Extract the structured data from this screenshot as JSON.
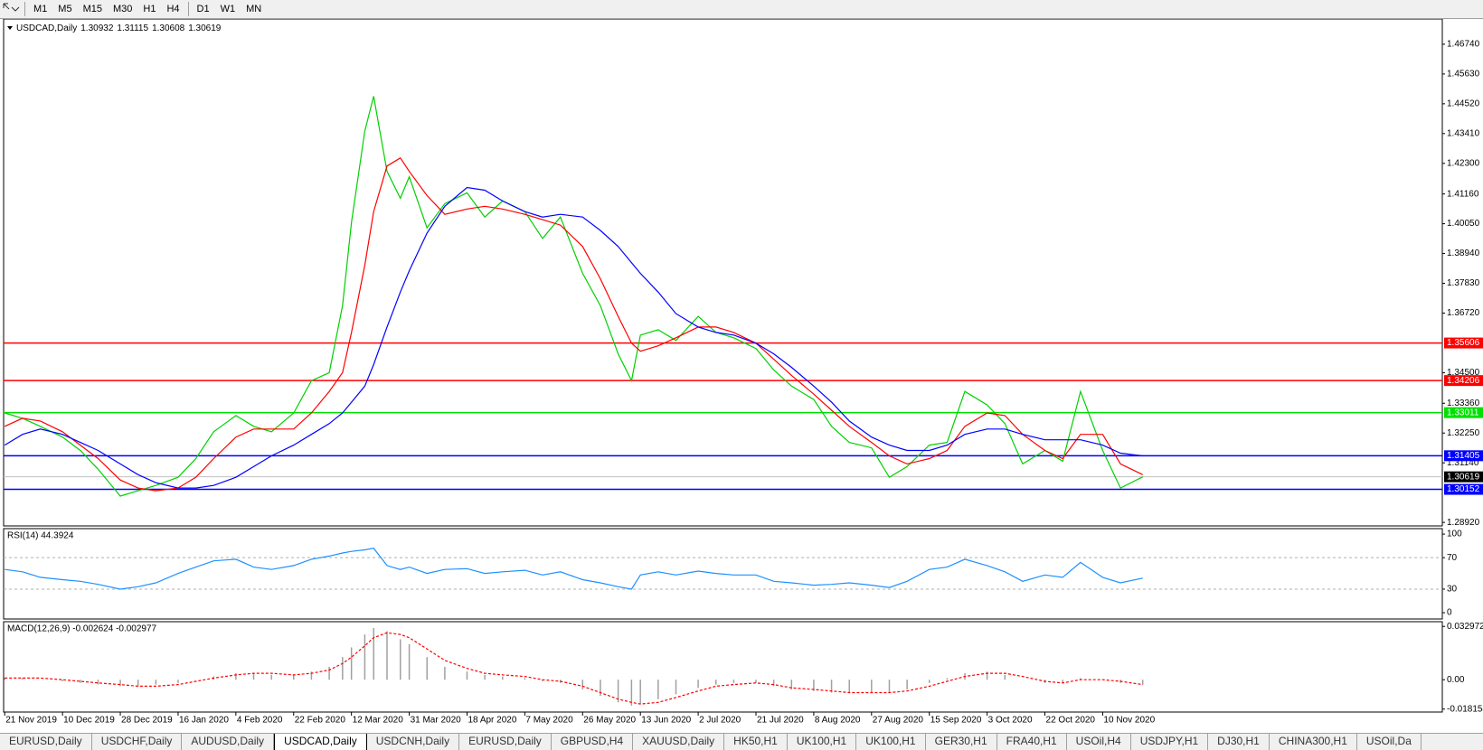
{
  "toolbar": {
    "timeframes": [
      "M1",
      "M5",
      "M15",
      "M30",
      "H1",
      "H4",
      "D1",
      "W1",
      "MN"
    ]
  },
  "chart_data": [
    {
      "type": "line",
      "title": "USDCAD,Daily",
      "ohlc": [
        1.30932,
        1.31115,
        1.30608,
        1.30619
      ],
      "x": [
        0,
        4,
        8,
        13,
        17,
        21,
        26,
        30,
        34,
        39,
        43,
        47,
        52,
        56,
        60,
        65,
        69,
        73,
        76,
        78,
        81,
        83,
        86,
        89,
        91,
        95,
        99,
        104,
        108,
        112,
        117,
        121,
        125,
        130,
        134,
        138,
        141,
        143,
        147,
        151,
        156,
        160,
        164,
        169,
        173,
        177,
        182,
        186,
        190,
        195,
        199,
        203,
        208,
        212,
        216,
        221,
        225,
        229,
        234,
        238,
        242,
        247,
        251,
        256
      ],
      "xlim": [
        -0.25,
        323.4
      ],
      "xticks": [
        {
          "value": 0,
          "label": "21 Nov 2019"
        },
        {
          "value": 13,
          "label": "10 Dec 2019"
        },
        {
          "value": 26,
          "label": "28 Dec 2019"
        },
        {
          "value": 39,
          "label": "16 Jan 2020"
        },
        {
          "value": 52,
          "label": "4 Feb 2020"
        },
        {
          "value": 65,
          "label": "22 Feb 2020"
        },
        {
          "value": 78,
          "label": "12 Mar 2020"
        },
        {
          "value": 91,
          "label": "31 Mar 2020"
        },
        {
          "value": 104,
          "label": "18 Apr 2020"
        },
        {
          "value": 117,
          "label": "7 May 2020"
        },
        {
          "value": 130,
          "label": "26 May 2020"
        },
        {
          "value": 143,
          "label": "13 Jun 2020"
        },
        {
          "value": 156,
          "label": "2 Jul 2020"
        },
        {
          "value": 169,
          "label": "21 Jul 2020"
        },
        {
          "value": 182,
          "label": "8 Aug 2020"
        },
        {
          "value": 195,
          "label": "27 Aug 2020"
        },
        {
          "value": 208,
          "label": "15 Sep 2020"
        },
        {
          "value": 221,
          "label": "3 Oct 2020"
        },
        {
          "value": 234,
          "label": "22 Oct 2020"
        },
        {
          "value": 247,
          "label": "10 Nov 2020"
        }
      ],
      "ylim": [
        1.2879,
        1.4768
      ],
      "yticks": [
        {
          "value": 1.4674,
          "label": "1.46740"
        },
        {
          "value": 1.4563,
          "label": "1.45630"
        },
        {
          "value": 1.4452,
          "label": "1.44520"
        },
        {
          "value": 1.4341,
          "label": "1.43410"
        },
        {
          "value": 1.423,
          "label": "1.42300"
        },
        {
          "value": 1.4116,
          "label": "1.41160"
        },
        {
          "value": 1.4005,
          "label": "1.40050"
        },
        {
          "value": 1.3894,
          "label": "1.38940"
        },
        {
          "value": 1.3783,
          "label": "1.37830"
        },
        {
          "value": 1.3672,
          "label": "1.36720"
        },
        {
          "value": 1.345,
          "label": "1.34500"
        },
        {
          "value": 1.3336,
          "label": "1.33360"
        },
        {
          "value": 1.3225,
          "label": "1.32250"
        },
        {
          "value": 1.3114,
          "label": "1.31140"
        },
        {
          "value": 1.2892,
          "label": "1.28920"
        }
      ],
      "series": [
        {
          "color": "#00d000",
          "values": [
            1.33,
            1.328,
            1.325,
            1.321,
            1.316,
            1.309,
            1.299,
            1.301,
            1.303,
            1.306,
            1.313,
            1.323,
            1.329,
            1.325,
            1.323,
            1.33,
            1.342,
            1.345,
            1.37,
            1.401,
            1.435,
            1.448,
            1.42,
            1.41,
            1.418,
            1.399,
            1.408,
            1.412,
            1.403,
            1.409,
            1.405,
            1.395,
            1.403,
            1.382,
            1.37,
            1.352,
            1.342,
            1.359,
            1.361,
            1.357,
            1.366,
            1.36,
            1.358,
            1.354,
            1.346,
            1.34,
            1.335,
            1.325,
            1.319,
            1.317,
            1.306,
            1.31,
            1.318,
            1.319,
            1.338,
            1.333,
            1.326,
            1.311,
            1.316,
            1.312,
            1.338,
            1.316,
            1.302,
            1.3062
          ]
        },
        {
          "color": "#ff0000",
          "values": [
            1.325,
            1.328,
            1.327,
            1.323,
            1.318,
            1.313,
            1.305,
            1.302,
            1.301,
            1.302,
            1.306,
            1.313,
            1.321,
            1.324,
            1.324,
            1.324,
            1.33,
            1.338,
            1.345,
            1.36,
            1.385,
            1.405,
            1.422,
            1.425,
            1.42,
            1.411,
            1.404,
            1.406,
            1.407,
            1.406,
            1.404,
            1.402,
            1.4,
            1.392,
            1.38,
            1.366,
            1.356,
            1.353,
            1.355,
            1.358,
            1.362,
            1.362,
            1.36,
            1.356,
            1.35,
            1.344,
            1.337,
            1.331,
            1.325,
            1.319,
            1.314,
            1.311,
            1.313,
            1.316,
            1.325,
            1.33,
            1.329,
            1.322,
            1.316,
            1.313,
            1.322,
            1.322,
            1.311,
            1.307
          ]
        },
        {
          "color": "#0000ff",
          "values": [
            1.318,
            1.322,
            1.324,
            1.322,
            1.319,
            1.316,
            1.311,
            1.307,
            1.304,
            1.302,
            1.302,
            1.303,
            1.306,
            1.31,
            1.314,
            1.318,
            1.322,
            1.326,
            1.33,
            1.334,
            1.34,
            1.348,
            1.362,
            1.375,
            1.383,
            1.397,
            1.407,
            1.414,
            1.413,
            1.409,
            1.405,
            1.403,
            1.404,
            1.403,
            1.398,
            1.392,
            1.386,
            1.382,
            1.375,
            1.367,
            1.362,
            1.36,
            1.359,
            1.356,
            1.352,
            1.347,
            1.34,
            1.334,
            1.327,
            1.321,
            1.318,
            1.316,
            1.316,
            1.318,
            1.322,
            1.324,
            1.324,
            1.322,
            1.32,
            1.32,
            1.32,
            1.318,
            1.315,
            1.314
          ]
        }
      ],
      "levels": [
        {
          "value": 1.35606,
          "color": "#ff0000"
        },
        {
          "value": 1.34206,
          "color": "#ff0000"
        },
        {
          "value": 1.33011,
          "color": "#00e000"
        },
        {
          "value": 1.31405,
          "color": "#0000ff"
        },
        {
          "value": 1.30152,
          "color": "#0000ff"
        }
      ],
      "last_price": 1.30619
    },
    {
      "type": "line",
      "title": "RSI(14) 44.3924",
      "ylim": [
        -8,
        107
      ],
      "yticks": [
        100,
        70,
        30,
        0
      ],
      "series": [
        {
          "color": "#1e90ff",
          "values": [
            55,
            52,
            45,
            42,
            40,
            36,
            30,
            33,
            38,
            50,
            58,
            66,
            68,
            58,
            55,
            60,
            68,
            72,
            76,
            78,
            80,
            82,
            60,
            55,
            58,
            50,
            55,
            56,
            50,
            52,
            54,
            48,
            52,
            42,
            38,
            33,
            30,
            48,
            52,
            48,
            53,
            50,
            48,
            48,
            40,
            38,
            35,
            36,
            38,
            35,
            32,
            40,
            55,
            58,
            68,
            60,
            52,
            40,
            48,
            45,
            64,
            45,
            38,
            44
          ]
        }
      ]
    },
    {
      "type": "bar",
      "title": "MACD(12,26,9) -0.002624 -0.002977",
      "ylim": [
        -0.02,
        0.0359
      ],
      "yticks": [
        0.032972,
        {
          "value": 0,
          "label": "0.00"
        },
        -0.018154
      ],
      "series": [
        {
          "type": "bar",
          "color": "#a0a0a0",
          "values": [
            0.001,
            0.001,
            0,
            -0.001,
            -0.002,
            -0.003,
            -0.004,
            -0.004,
            -0.003,
            -0.002,
            0,
            0.002,
            0.004,
            0.004,
            0.003,
            0.003,
            0.005,
            0.008,
            0.014,
            0.02,
            0.028,
            0.032,
            0.03,
            0.025,
            0.022,
            0.014,
            0.008,
            0.005,
            0.003,
            0.002,
            0.001,
            -0.001,
            -0.002,
            -0.006,
            -0.01,
            -0.014,
            -0.016,
            -0.015,
            -0.012,
            -0.009,
            -0.005,
            -0.003,
            -0.002,
            -0.002,
            -0.004,
            -0.006,
            -0.007,
            -0.008,
            -0.008,
            -0.008,
            -0.008,
            -0.006,
            -0.002,
            0.001,
            0.004,
            0.005,
            0.003,
            0,
            -0.002,
            -0.002,
            0.001,
            0,
            -0.002,
            -0.003
          ]
        },
        {
          "type": "line",
          "color": "#ff0000",
          "dashed": true,
          "values": [
            0.001,
            0.001,
            0.001,
            0,
            -0.001,
            -0.002,
            -0.003,
            -0.004,
            -0.004,
            -0.003,
            -0.001,
            0.001,
            0.003,
            0.004,
            0.004,
            0.003,
            0.004,
            0.006,
            0.01,
            0.014,
            0.021,
            0.026,
            0.029,
            0.028,
            0.026,
            0.019,
            0.012,
            0.007,
            0.004,
            0.003,
            0.002,
            0,
            -0.001,
            -0.004,
            -0.008,
            -0.012,
            -0.014,
            -0.015,
            -0.014,
            -0.011,
            -0.007,
            -0.004,
            -0.003,
            -0.002,
            -0.003,
            -0.005,
            -0.006,
            -0.007,
            -0.008,
            -0.008,
            -0.008,
            -0.007,
            -0.004,
            -0.001,
            0.002,
            0.004,
            0.004,
            0.002,
            -0.001,
            -0.002,
            0,
            0,
            -0.001,
            -0.003
          ]
        }
      ]
    }
  ],
  "tabs": {
    "items": [
      "EURUSD,Daily",
      "USDCHF,Daily",
      "AUDUSD,Daily",
      "USDCAD,Daily",
      "USDCNH,Daily",
      "EURUSD,Daily",
      "GBPUSD,H4",
      "XAUUSD,Daily",
      "HK50,H1",
      "UK100,H1",
      "UK100,H1",
      "GER30,H1",
      "FRA40,H1",
      "USOil,H4",
      "USDJPY,H1",
      "DJ30,H1",
      "CHINA300,H1",
      "USOil,Da"
    ],
    "active": 3
  }
}
